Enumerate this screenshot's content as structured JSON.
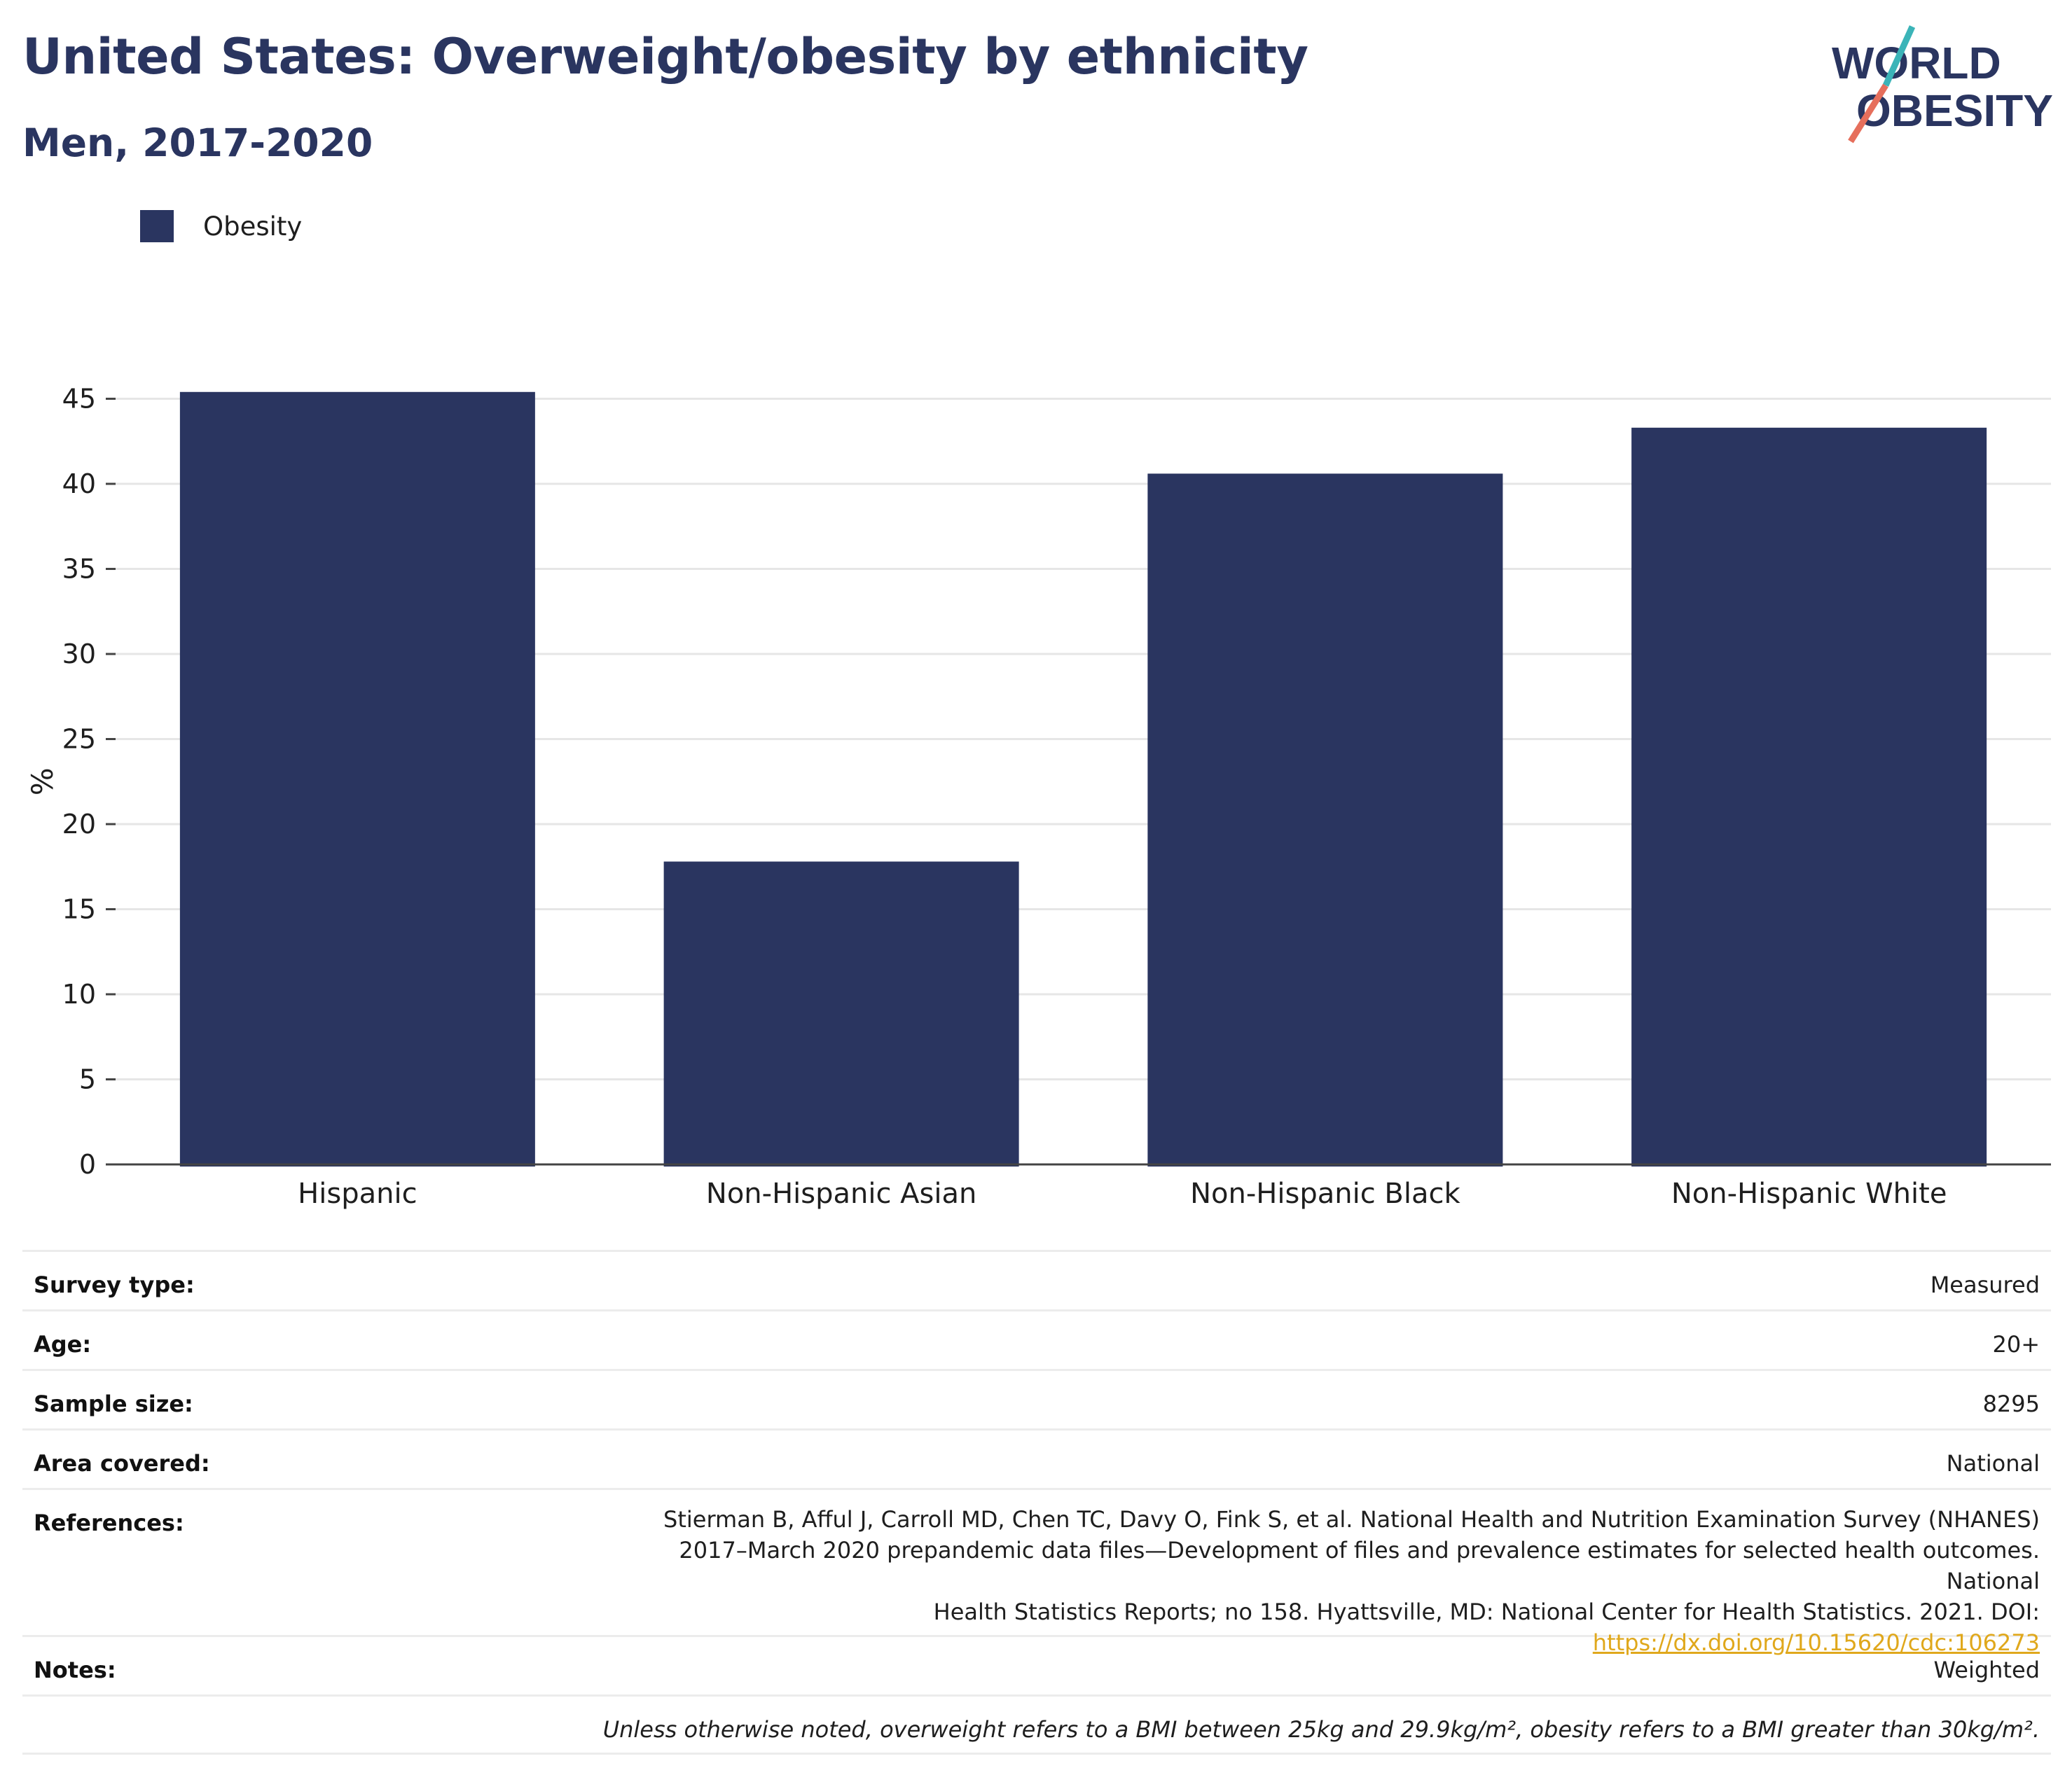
{
  "title": "United States: Overweight/obesity by ethnicity",
  "subtitle": "Men, 2017-2020",
  "logo": {
    "line1": "WORLD",
    "line2": "OBESITY"
  },
  "colors": {
    "bar": "#2a3560",
    "grid": "#e6e6e6",
    "axis": "#444444",
    "link": "#e0a81c",
    "logo_teal": "#3bb4b8",
    "logo_coral": "#e66f5c"
  },
  "chart_data": {
    "type": "bar",
    "categories": [
      "Hispanic",
      "Non-Hispanic Asian",
      "Non-Hispanic Black",
      "Non-Hispanic White"
    ],
    "series": [
      {
        "name": "Obesity",
        "values": [
          45.4,
          17.8,
          40.6,
          43.3
        ]
      }
    ],
    "ylabel": "%",
    "xlabel": "",
    "ylim": [
      0,
      45
    ],
    "yticks": [
      0,
      5,
      10,
      15,
      20,
      25,
      30,
      35,
      40,
      45
    ],
    "grid": true,
    "legend": "top-left"
  },
  "info": {
    "survey_type_label": "Survey type:",
    "survey_type": "Measured",
    "age_label": "Age:",
    "age": "20+",
    "sample_size_label": "Sample size:",
    "sample_size": "8295",
    "area_label": "Area covered:",
    "area": "National",
    "references_label": "References:",
    "references_line1": "Stierman B, Afful J, Carroll MD, Chen TC, Davy O, Fink S, et al. National Health and Nutrition Examination Survey (NHANES)",
    "references_line2": "2017–March 2020 prepandemic data files—Development of files and prevalence estimates for selected health outcomes. National",
    "references_line3": "Health Statistics Reports; no 158. Hyattsville, MD: National Center for Health Statistics. 2021. DOI:",
    "references_link": "https://dx.doi.org/10.15620/cdc:106273",
    "notes_label": "Notes:",
    "notes": "Weighted",
    "footnote": "Unless otherwise noted, overweight refers to a BMI between 25kg and 29.9kg/m², obesity refers to a BMI greater than 30kg/m²."
  }
}
